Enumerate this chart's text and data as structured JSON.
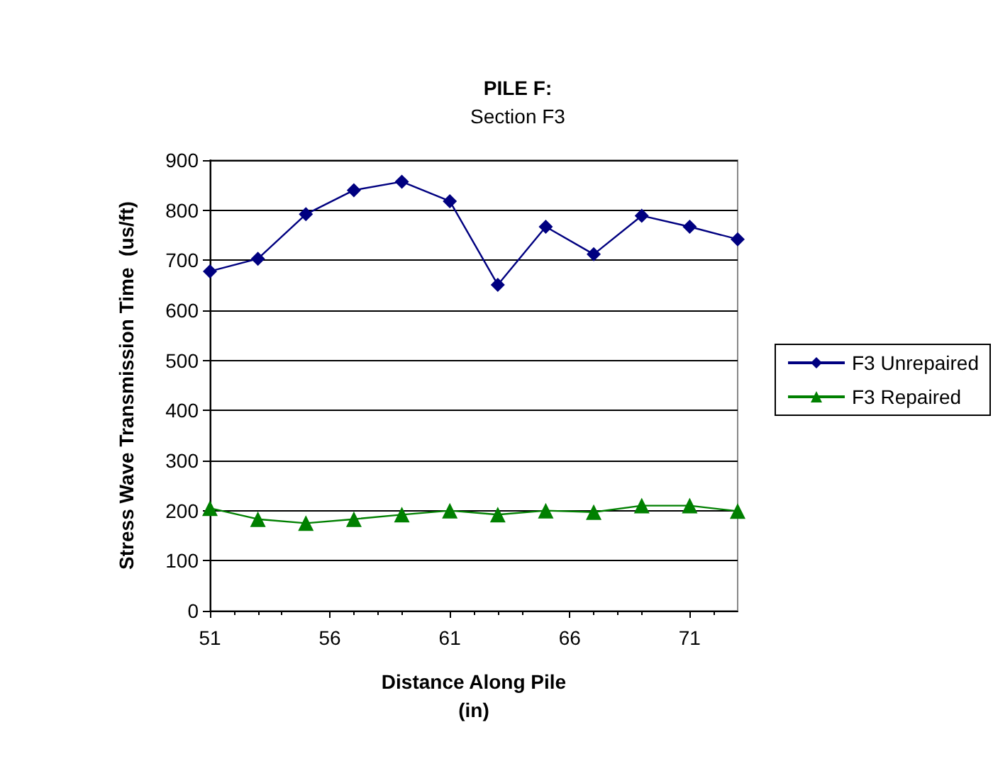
{
  "chart_data": {
    "type": "line",
    "title": "PILE F:",
    "subtitle": "Section F3",
    "xlabel": "Distance Along Pile\n(in)",
    "ylabel": "Stress Wave Transmission Time  (us/ft)",
    "x": [
      51,
      53,
      55,
      57,
      59,
      61,
      63,
      65,
      67,
      69,
      71,
      73
    ],
    "series": [
      {
        "name": "F3 Unrepaired",
        "color": "#000080",
        "marker": "diamond",
        "values": [
          678,
          703,
          792,
          840,
          857,
          818,
          651,
          767,
          712,
          789,
          767,
          742
        ]
      },
      {
        "name": "F3 Repaired",
        "color": "#008000",
        "marker": "triangle",
        "values": [
          205,
          183,
          175,
          183,
          192,
          200,
          192,
          200,
          197,
          210,
          210,
          199
        ]
      }
    ],
    "xlim": [
      51,
      73
    ],
    "xticks": [
      51,
      56,
      61,
      66,
      71
    ],
    "ylim": [
      0,
      900
    ],
    "yticks": [
      0,
      100,
      200,
      300,
      400,
      500,
      600,
      700,
      800,
      900
    ],
    "grid": "y",
    "legend": "right",
    "line_style": "solid"
  }
}
